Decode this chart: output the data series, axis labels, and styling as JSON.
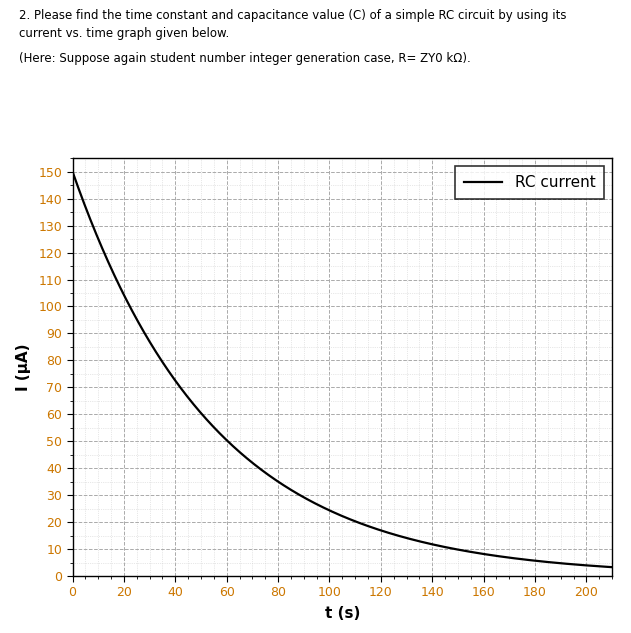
{
  "title_line1": "2. Please find the time constant and capacitance value (C) of a simple RC circuit by using its",
  "title_line2": "current vs. time graph given below.",
  "subtitle": "(Here: Suppose again student number integer generation case, R= ZY0 kΩ).",
  "xlabel": "t (s)",
  "ylabel": "I (μA)",
  "xlim": [
    0,
    210
  ],
  "ylim": [
    0,
    155
  ],
  "xticks": [
    0,
    20,
    40,
    60,
    80,
    100,
    120,
    140,
    160,
    180,
    200
  ],
  "yticks": [
    0,
    10,
    20,
    30,
    40,
    50,
    60,
    70,
    80,
    90,
    100,
    110,
    120,
    130,
    140,
    150
  ],
  "I0": 150,
  "tau": 55,
  "legend_label": "RC current",
  "line_color": "#000000",
  "grid_major_color": "#aaaaaa",
  "grid_minor_color": "#cccccc",
  "tick_label_color": "#cc7700",
  "background_color": "#ffffff",
  "fig_bg_color": "#ffffff",
  "text_color": "#000000",
  "header_fontsize": 8.5,
  "axis_label_fontsize": 11,
  "tick_fontsize": 9,
  "legend_fontsize": 11
}
